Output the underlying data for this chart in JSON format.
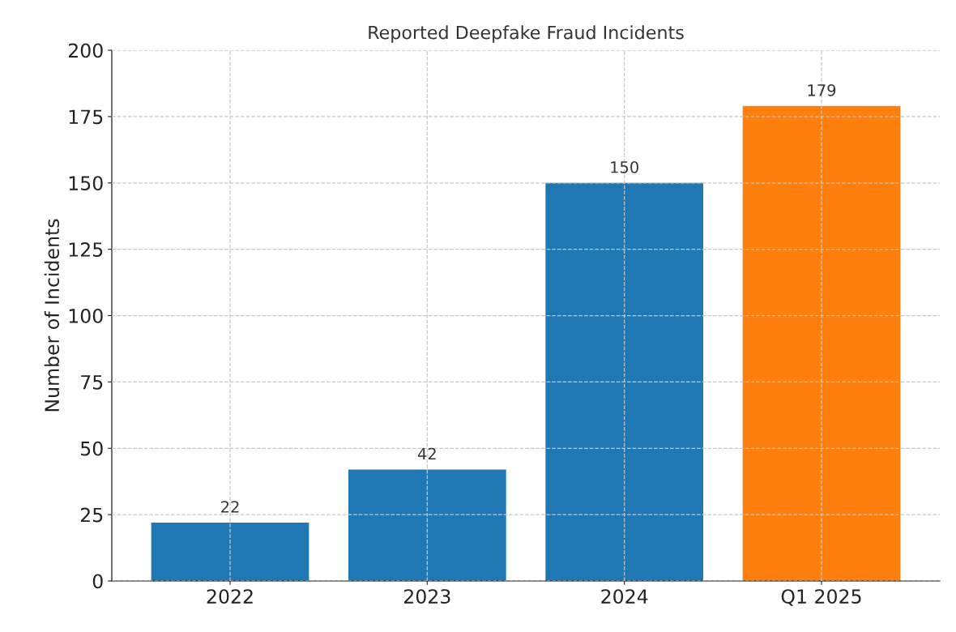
{
  "chart_data": {
    "type": "bar",
    "title": "Reported Deepfake Fraud Incidents",
    "ylabel": "Number of Incidents",
    "categories": [
      "2022",
      "2023",
      "2024",
      "Q1 2025"
    ],
    "values": [
      22,
      42,
      150,
      179
    ],
    "colors": [
      "#1f77b4",
      "#1f77b4",
      "#1f77b4",
      "#ff7f0e"
    ],
    "ylim": [
      0,
      200
    ],
    "yticks": [
      0,
      25,
      50,
      75,
      100,
      125,
      150,
      175,
      200
    ],
    "grid": true,
    "data_labels": true
  }
}
